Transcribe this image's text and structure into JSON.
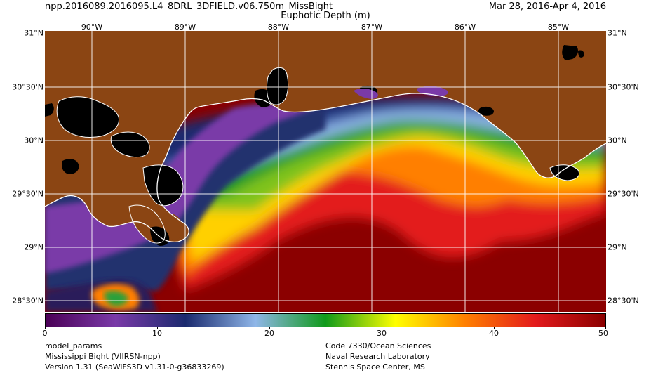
{
  "header": {
    "product": "npp.2016089.2016095.L4_8DRL_3DFIELD.v06.750m_MissBight",
    "date_range": "Mar 28, 2016-Apr  4, 2016",
    "variable": "Euphotic Depth (m)"
  },
  "map": {
    "longitude_labels": [
      "90°W",
      "89°W",
      "88°W",
      "87°W",
      "86°W",
      "85°W"
    ],
    "latitude_labels": [
      "31°N",
      "30°30'N",
      "30°N",
      "29°30'N",
      "29°N",
      "28°30'N"
    ],
    "colors": {
      "land": "#8b4513",
      "no_data": "#000000",
      "coastline": "#ffffff",
      "grid": "#ffffff"
    }
  },
  "colorbar": {
    "ticks": [
      "0",
      "10",
      "20",
      "30",
      "40",
      "50"
    ],
    "colors": [
      "#4b0057",
      "#7a3aa8",
      "#1a2a6e",
      "#8fb6e8",
      "#0f9a1a",
      "#ffff00",
      "#ff7f00",
      "#e31a1c",
      "#8b0000"
    ]
  },
  "footer": {
    "left": [
      "model_params",
      "Mississippi Bight (VIIRSN-npp)",
      "Version 1.31 (SeaWiFS3D v1.31-0-g36833269)"
    ],
    "right": [
      "Code 7330/Ocean Sciences",
      "Naval Research Laboratory",
      "Stennis Space Center, MS"
    ]
  }
}
